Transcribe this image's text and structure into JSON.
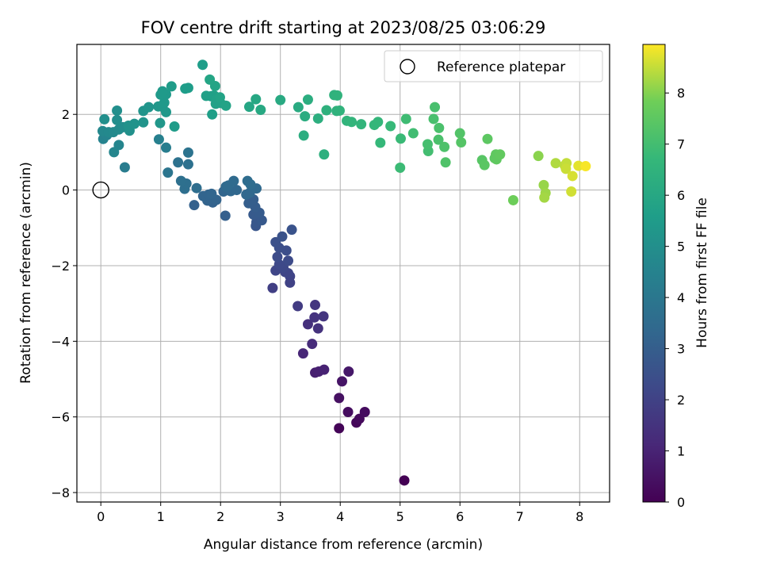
{
  "chart_data": {
    "type": "scatter",
    "title": "FOV centre drift starting at 2023/08/25 03:06:29",
    "xlabel": "Angular distance from reference (arcmin)",
    "ylabel": "Rotation from reference (arcmin)",
    "xlim": [
      -0.4,
      8.5
    ],
    "ylim": [
      -8.25,
      3.85
    ],
    "xticks": [
      0,
      1,
      2,
      3,
      4,
      5,
      6,
      7,
      8
    ],
    "yticks": [
      -8,
      -6,
      -4,
      -2,
      0,
      2
    ],
    "grid": true,
    "legend": {
      "placement": "top-right",
      "entries": [
        "Reference platepar"
      ]
    },
    "colorbar": {
      "label": "Hours from first FF file",
      "colormap": "viridis",
      "range": [
        0,
        8.95
      ],
      "ticks": [
        0,
        1,
        2,
        3,
        4,
        5,
        6,
        7,
        8
      ]
    },
    "reference_point": {
      "x": 0,
      "y": 0
    },
    "series": [
      {
        "points": [
          [
            5.07,
            -7.68,
            0.0
          ],
          [
            3.98,
            -6.3,
            0.1
          ],
          [
            4.27,
            -6.15,
            0.18
          ],
          [
            4.32,
            -6.05,
            0.25
          ],
          [
            4.41,
            -5.87,
            0.3
          ],
          [
            4.13,
            -5.87,
            0.35
          ],
          [
            3.98,
            -5.5,
            0.45
          ],
          [
            4.03,
            -5.06,
            0.55
          ],
          [
            4.14,
            -4.8,
            0.65
          ],
          [
            3.58,
            -4.83,
            0.85
          ],
          [
            3.64,
            -4.8,
            0.9
          ],
          [
            3.73,
            -4.75,
            0.95
          ],
          [
            3.38,
            -4.32,
            1.1
          ],
          [
            3.53,
            -4.07,
            1.25
          ],
          [
            3.46,
            -3.55,
            1.4
          ],
          [
            3.63,
            -3.66,
            1.45
          ],
          [
            3.57,
            -3.37,
            1.5
          ],
          [
            3.72,
            -3.34,
            1.55
          ],
          [
            3.58,
            -3.04,
            1.6
          ],
          [
            3.29,
            -3.07,
            1.75
          ],
          [
            2.87,
            -2.59,
            1.9
          ],
          [
            3.16,
            -2.45,
            2.0
          ],
          [
            3.16,
            -2.28,
            2.05
          ],
          [
            3.13,
            -2.2,
            2.1
          ],
          [
            3.08,
            -2.17,
            2.1
          ],
          [
            2.92,
            -2.13,
            2.15
          ],
          [
            3.05,
            -2.05,
            2.2
          ],
          [
            2.98,
            -1.97,
            2.25
          ],
          [
            3.13,
            -1.87,
            2.3
          ],
          [
            2.95,
            -1.77,
            2.35
          ],
          [
            3.1,
            -1.6,
            2.4
          ],
          [
            2.98,
            -1.53,
            2.45
          ],
          [
            2.92,
            -1.38,
            2.5
          ],
          [
            3.03,
            -1.23,
            2.55
          ],
          [
            3.19,
            -1.05,
            2.6
          ],
          [
            2.59,
            -0.95,
            2.7
          ],
          [
            2.6,
            -0.85,
            2.75
          ],
          [
            2.69,
            -0.8,
            2.8
          ],
          [
            2.55,
            -0.65,
            2.85
          ],
          [
            2.65,
            -0.6,
            2.9
          ],
          [
            2.58,
            -0.45,
            2.95
          ],
          [
            2.47,
            -0.35,
            3.0
          ],
          [
            2.55,
            -0.25,
            3.0
          ],
          [
            2.08,
            -0.68,
            3.05
          ],
          [
            1.56,
            -0.4,
            3.1
          ],
          [
            1.87,
            -0.33,
            3.15
          ],
          [
            1.78,
            -0.28,
            3.2
          ],
          [
            1.93,
            -0.26,
            3.2
          ],
          [
            1.71,
            -0.16,
            3.25
          ],
          [
            1.8,
            -0.12,
            3.25
          ],
          [
            1.85,
            -0.1,
            3.3
          ],
          [
            2.05,
            -0.04,
            3.3
          ],
          [
            2.17,
            -0.03,
            3.35
          ],
          [
            2.27,
            0.0,
            3.35
          ],
          [
            2.43,
            -0.12,
            3.4
          ],
          [
            2.49,
            -0.07,
            3.4
          ],
          [
            2.6,
            0.04,
            3.45
          ],
          [
            2.09,
            0.09,
            3.45
          ],
          [
            2.13,
            0.12,
            3.5
          ],
          [
            2.22,
            0.24,
            3.5
          ],
          [
            2.45,
            0.24,
            3.55
          ],
          [
            2.5,
            0.15,
            3.55
          ],
          [
            1.6,
            0.05,
            3.6
          ],
          [
            1.4,
            0.03,
            3.65
          ],
          [
            1.43,
            0.17,
            3.65
          ],
          [
            1.34,
            0.24,
            3.7
          ],
          [
            1.46,
            0.68,
            3.75
          ],
          [
            1.29,
            0.73,
            3.8
          ],
          [
            1.46,
            0.99,
            3.85
          ],
          [
            1.12,
            0.46,
            3.9
          ],
          [
            0.4,
            0.6,
            4.2
          ],
          [
            1.09,
            1.12,
            4.25
          ],
          [
            0.97,
            1.34,
            4.4
          ],
          [
            0.04,
            1.35,
            4.5
          ],
          [
            0.1,
            1.45,
            4.55
          ],
          [
            0.3,
            1.19,
            4.6
          ],
          [
            0.22,
            1.0,
            4.65
          ],
          [
            0.03,
            1.56,
            4.7
          ],
          [
            0.13,
            1.53,
            4.75
          ],
          [
            0.21,
            1.53,
            4.8
          ],
          [
            0.3,
            1.6,
            4.85
          ],
          [
            0.37,
            1.66,
            4.9
          ],
          [
            0.27,
            1.85,
            4.95
          ],
          [
            0.06,
            1.87,
            5.0
          ],
          [
            0.27,
            2.1,
            5.0
          ],
          [
            0.48,
            1.57,
            5.05
          ],
          [
            0.46,
            1.7,
            5.1
          ],
          [
            0.56,
            1.75,
            5.15
          ],
          [
            0.71,
            1.79,
            5.2
          ],
          [
            0.71,
            2.09,
            5.2
          ],
          [
            0.8,
            2.19,
            5.25
          ],
          [
            0.99,
            1.77,
            5.3
          ],
          [
            0.96,
            2.21,
            5.3
          ],
          [
            1.09,
            2.06,
            5.35
          ],
          [
            1.03,
            2.2,
            5.35
          ],
          [
            1.06,
            2.31,
            5.4
          ],
          [
            1.09,
            2.53,
            5.4
          ],
          [
            1.0,
            2.52,
            5.45
          ],
          [
            1.03,
            2.61,
            5.45
          ],
          [
            1.18,
            2.74,
            5.5
          ],
          [
            1.23,
            1.68,
            5.5
          ],
          [
            1.41,
            2.68,
            5.55
          ],
          [
            1.46,
            2.7,
            5.55
          ],
          [
            1.7,
            3.31,
            5.6
          ],
          [
            1.86,
            2.0,
            5.65
          ],
          [
            1.84,
            2.48,
            5.65
          ],
          [
            1.76,
            2.49,
            5.7
          ],
          [
            1.89,
            2.5,
            5.7
          ],
          [
            1.93,
            2.39,
            5.75
          ],
          [
            1.92,
            2.28,
            5.75
          ],
          [
            2.0,
            2.3,
            5.75
          ],
          [
            2.09,
            2.23,
            5.8
          ],
          [
            1.99,
            2.45,
            5.8
          ],
          [
            1.91,
            2.75,
            5.85
          ],
          [
            1.82,
            2.92,
            5.9
          ],
          [
            2.48,
            2.2,
            5.95
          ],
          [
            2.59,
            2.4,
            6.0
          ],
          [
            2.67,
            2.12,
            6.05
          ],
          [
            3.0,
            2.38,
            6.1
          ],
          [
            3.3,
            2.19,
            6.15
          ],
          [
            3.41,
            1.95,
            6.2
          ],
          [
            3.39,
            1.44,
            6.25
          ],
          [
            3.46,
            2.39,
            6.25
          ],
          [
            3.63,
            1.89,
            6.3
          ],
          [
            3.73,
            0.94,
            6.35
          ],
          [
            3.77,
            2.11,
            6.4
          ],
          [
            3.9,
            2.51,
            6.45
          ],
          [
            3.94,
            2.09,
            6.45
          ],
          [
            3.99,
            2.1,
            6.5
          ],
          [
            3.95,
            2.5,
            6.5
          ],
          [
            4.11,
            1.83,
            6.55
          ],
          [
            4.19,
            1.8,
            6.6
          ],
          [
            4.35,
            1.74,
            6.6
          ],
          [
            4.57,
            1.72,
            6.65
          ],
          [
            4.63,
            1.8,
            6.65
          ],
          [
            4.67,
            1.25,
            6.7
          ],
          [
            4.84,
            1.69,
            6.75
          ],
          [
            5.01,
            1.36,
            6.8
          ],
          [
            5.0,
            0.59,
            6.85
          ],
          [
            5.1,
            1.88,
            6.9
          ],
          [
            5.22,
            1.5,
            6.95
          ],
          [
            5.47,
            1.03,
            7.0
          ],
          [
            5.46,
            1.21,
            7.05
          ],
          [
            5.56,
            1.88,
            7.1
          ],
          [
            5.58,
            2.19,
            7.1
          ],
          [
            5.65,
            1.64,
            7.15
          ],
          [
            5.64,
            1.33,
            7.15
          ],
          [
            5.74,
            1.14,
            7.2
          ],
          [
            5.76,
            0.73,
            7.25
          ],
          [
            6.0,
            1.5,
            7.3
          ],
          [
            6.02,
            1.26,
            7.35
          ],
          [
            6.37,
            0.79,
            7.4
          ],
          [
            6.41,
            0.66,
            7.45
          ],
          [
            6.46,
            1.35,
            7.5
          ],
          [
            6.58,
            0.84,
            7.5
          ],
          [
            6.6,
            0.94,
            7.55
          ],
          [
            6.61,
            0.81,
            7.55
          ],
          [
            6.67,
            0.94,
            7.6
          ],
          [
            6.89,
            -0.27,
            7.8
          ],
          [
            7.31,
            0.9,
            8.05
          ],
          [
            7.4,
            0.13,
            8.15
          ],
          [
            7.43,
            -0.08,
            8.2
          ],
          [
            7.41,
            -0.2,
            8.25
          ],
          [
            7.6,
            0.71,
            8.35
          ],
          [
            7.75,
            0.65,
            8.45
          ],
          [
            7.78,
            0.71,
            8.5
          ],
          [
            7.77,
            0.56,
            8.55
          ],
          [
            7.86,
            -0.04,
            8.6
          ],
          [
            7.88,
            0.37,
            8.65
          ],
          [
            7.98,
            0.64,
            8.75
          ],
          [
            8.1,
            0.63,
            8.9
          ]
        ]
      }
    ]
  }
}
